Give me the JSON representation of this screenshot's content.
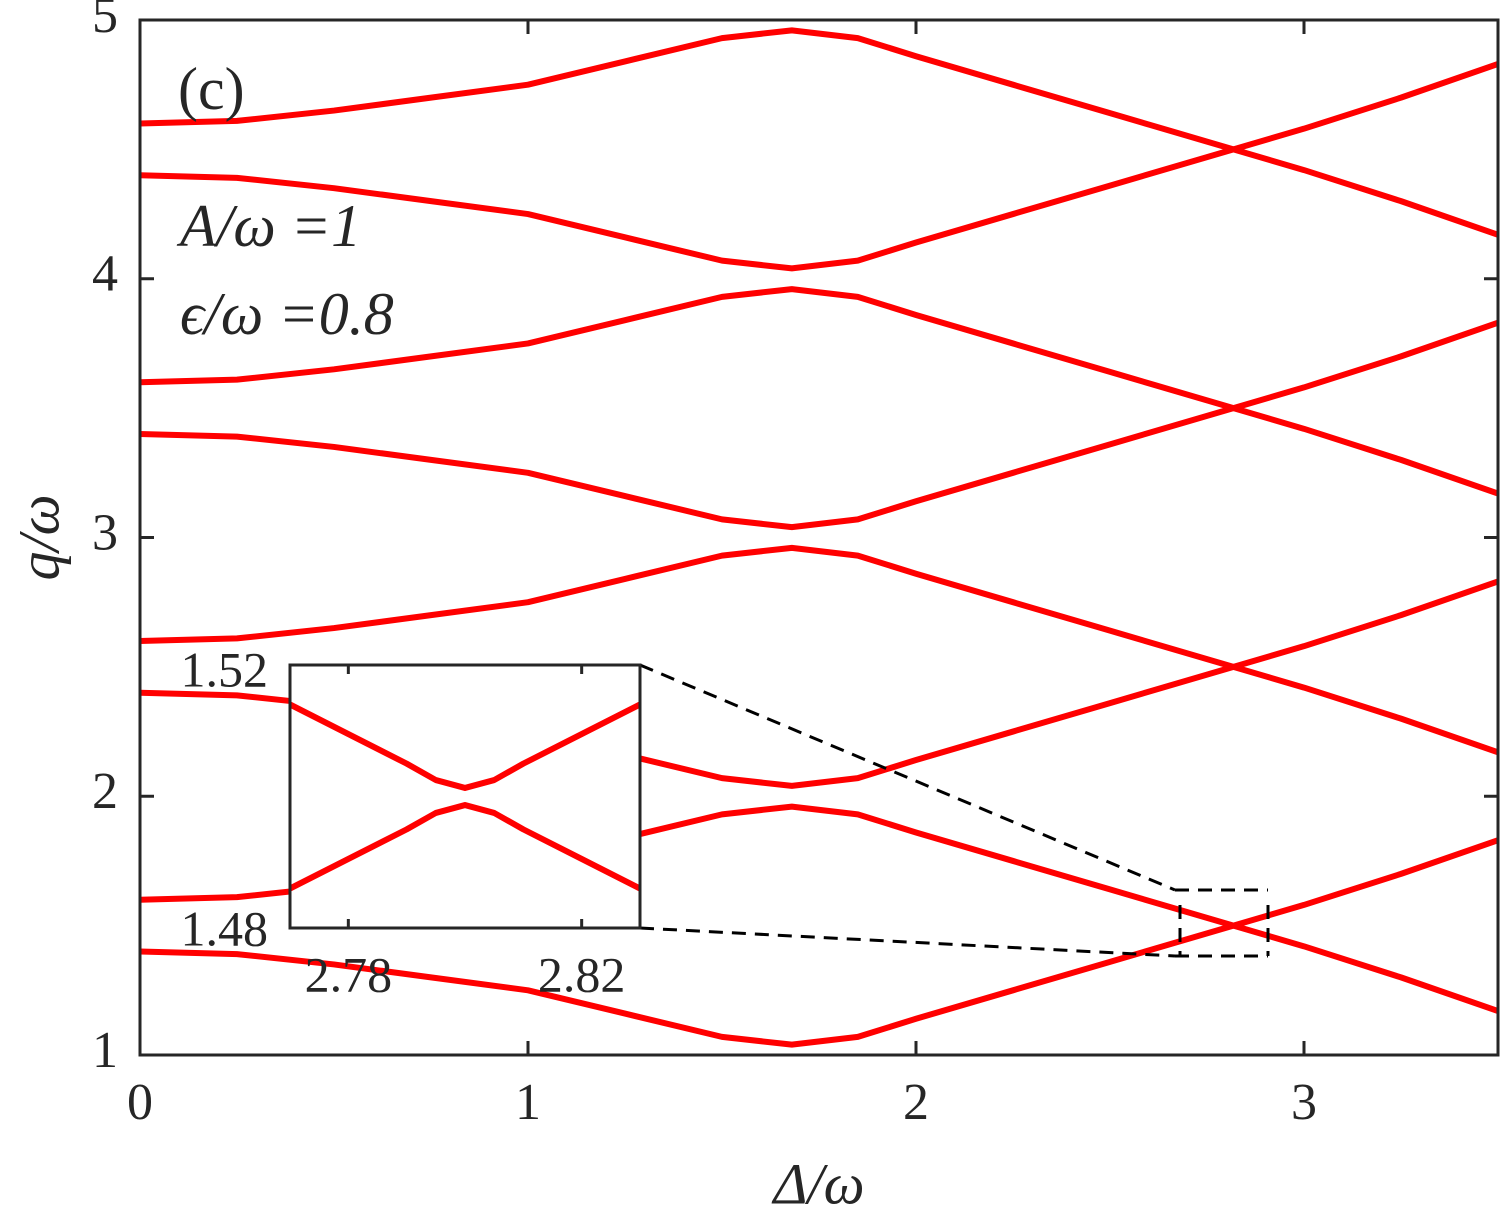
{
  "chart_data": [
    {
      "type": "line",
      "xlabel": "Δ/ω",
      "ylabel": "q/ω",
      "annotations": [
        "(c)",
        "A/ω =1",
        "ϵ/ω =0.8"
      ],
      "xlim": [
        0,
        3.5
      ],
      "ylim": [
        1,
        5
      ],
      "xticks": [
        0,
        1,
        2,
        3
      ],
      "yticks": [
        1,
        2,
        3,
        4,
        5
      ],
      "grid": false,
      "x": [
        0,
        0.25,
        0.5,
        0.75,
        1,
        1.25,
        1.5,
        1.68,
        1.85,
        2,
        2.25,
        2.5,
        2.75,
        3,
        3.25,
        3.5
      ],
      "series": [
        {
          "color": "#ff0000",
          "values": [
            1.4,
            1.39,
            1.35,
            1.3,
            1.25,
            1.16,
            1.07,
            1.04,
            1.07,
            1.14,
            1.25,
            1.36,
            1.47,
            1.58,
            1.7,
            1.83
          ]
        },
        {
          "color": "#ff0000",
          "values": [
            1.6,
            1.61,
            1.65,
            1.7,
            1.75,
            1.84,
            1.93,
            1.96,
            1.93,
            1.86,
            1.75,
            1.64,
            1.53,
            1.42,
            1.3,
            1.17
          ]
        },
        {
          "color": "#ff0000",
          "values": [
            2.4,
            2.39,
            2.35,
            2.3,
            2.25,
            2.16,
            2.07,
            2.04,
            2.07,
            2.14,
            2.25,
            2.36,
            2.47,
            2.58,
            2.7,
            2.83
          ]
        },
        {
          "color": "#ff0000",
          "values": [
            2.6,
            2.61,
            2.65,
            2.7,
            2.75,
            2.84,
            2.93,
            2.96,
            2.93,
            2.86,
            2.75,
            2.64,
            2.53,
            2.42,
            2.3,
            2.17
          ]
        },
        {
          "color": "#ff0000",
          "values": [
            3.4,
            3.39,
            3.35,
            3.3,
            3.25,
            3.16,
            3.07,
            3.04,
            3.07,
            3.14,
            3.25,
            3.36,
            3.47,
            3.58,
            3.7,
            3.83
          ]
        },
        {
          "color": "#ff0000",
          "values": [
            3.6,
            3.61,
            3.65,
            3.7,
            3.75,
            3.84,
            3.93,
            3.96,
            3.93,
            3.86,
            3.75,
            3.64,
            3.53,
            3.42,
            3.3,
            3.17
          ]
        },
        {
          "color": "#ff0000",
          "values": [
            4.4,
            4.39,
            4.35,
            4.3,
            4.25,
            4.16,
            4.07,
            4.04,
            4.07,
            4.14,
            4.25,
            4.36,
            4.47,
            4.58,
            4.7,
            4.83
          ]
        },
        {
          "color": "#ff0000",
          "values": [
            4.6,
            4.61,
            4.65,
            4.7,
            4.75,
            4.84,
            4.93,
            4.96,
            4.93,
            4.86,
            4.75,
            4.64,
            4.53,
            4.42,
            4.3,
            4.17
          ]
        }
      ]
    },
    {
      "type": "line",
      "xlim": [
        2.77,
        2.83
      ],
      "ylim": [
        1.48,
        1.52
      ],
      "xticks": [
        2.78,
        2.82
      ],
      "yticks": [
        1.48,
        1.52
      ],
      "grid": false,
      "x": [
        2.77,
        2.78,
        2.79,
        2.795,
        2.8,
        2.805,
        2.81,
        2.82,
        2.83
      ],
      "series": [
        {
          "color": "#ff0000",
          "values": [
            1.514,
            1.5095,
            1.505,
            1.5025,
            1.5013,
            1.5025,
            1.505,
            1.5095,
            1.514
          ]
        },
        {
          "color": "#ff0000",
          "values": [
            1.486,
            1.4905,
            1.495,
            1.4975,
            1.4987,
            1.4975,
            1.495,
            1.4905,
            1.486
          ]
        }
      ]
    }
  ]
}
